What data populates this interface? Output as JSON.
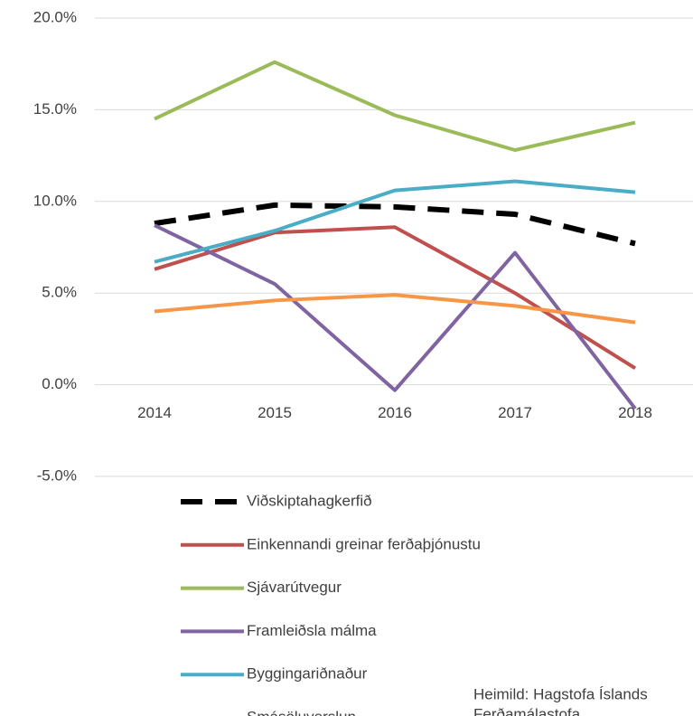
{
  "chart_data": {
    "type": "line",
    "categories": [
      "2014",
      "2015",
      "2016",
      "2017",
      "2018"
    ],
    "series": [
      {
        "name": "Viðskiptahagkerfið",
        "color": "#000000",
        "dashed": true,
        "values": [
          8.8,
          9.8,
          9.7,
          9.3,
          7.7
        ]
      },
      {
        "name": "Einkennandi greinar ferðaþjónustu",
        "color": "#c0504d",
        "values": [
          6.3,
          8.3,
          8.6,
          5.0,
          0.9
        ]
      },
      {
        "name": "Sjávarútvegur",
        "color": "#9bbb59",
        "values": [
          14.5,
          17.6,
          14.7,
          12.8,
          14.3
        ]
      },
      {
        "name": "Framleiðsla málma",
        "color": "#8064a2",
        "values": [
          8.7,
          5.5,
          -0.3,
          7.2,
          -1.3
        ]
      },
      {
        "name": "Byggingariðnaður",
        "color": "#4bacc6",
        "values": [
          6.7,
          8.4,
          10.6,
          11.1,
          10.5
        ]
      },
      {
        "name": "Smásöluverslun",
        "color": "#f79646",
        "values": [
          4.0,
          4.6,
          4.9,
          4.3,
          3.4
        ]
      }
    ],
    "ylim": [
      -5,
      20
    ],
    "yticks": [
      {
        "value": -5,
        "label": "-5.0%"
      },
      {
        "value": 0,
        "label": "0.0%"
      },
      {
        "value": 5,
        "label": "5.0%"
      },
      {
        "value": 10,
        "label": "10.0%"
      },
      {
        "value": 15,
        "label": "15.0%"
      },
      {
        "value": 20,
        "label": "20.0%"
      }
    ],
    "grid": true,
    "legend": "bottom",
    "annotation": [
      "Heimild: Hagstofa Íslands",
      "Ferðamálastofa"
    ]
  }
}
